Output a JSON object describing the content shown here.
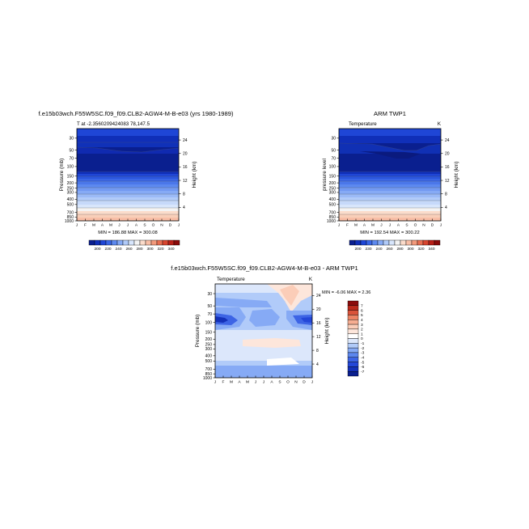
{
  "chart_data": [
    {
      "type": "heatmap",
      "title": "f.e15b03wch.F55W5SC.f09_f09.CLB2-AGW4-M-B-e03 (yrs 1980-1989)",
      "subtitle": "T at -2.3560209424083 78,147.5",
      "ylabel": "Pressure (mb)",
      "ylabel_right": "Height (km)",
      "x_ticks": [
        "J",
        "F",
        "M",
        "A",
        "M",
        "J",
        "J",
        "A",
        "S",
        "O",
        "N",
        "D",
        "J"
      ],
      "y_ticks": [
        "30",
        "50",
        "70",
        "100",
        "150",
        "200",
        "250",
        "300",
        "400",
        "500",
        "700",
        "850",
        "1000"
      ],
      "y_ticks_right": [
        "24",
        "20",
        "16",
        "12",
        "8",
        "4"
      ],
      "ylim": [
        1000,
        20
      ],
      "stats": "MIN = 186.88  MAX = 300.08",
      "colorbar_ticks": [
        "200",
        "230",
        "240",
        "260",
        "280",
        "300",
        "320",
        "340"
      ],
      "profile": [
        {
          "p": 20,
          "t": 218
        },
        {
          "p": 30,
          "t": 214
        },
        {
          "p": 50,
          "t": 208
        },
        {
          "p": 70,
          "t": 199
        },
        {
          "p": 100,
          "t": 193
        },
        {
          "p": 150,
          "t": 203
        },
        {
          "p": 200,
          "t": 216
        },
        {
          "p": 250,
          "t": 228
        },
        {
          "p": 300,
          "t": 240
        },
        {
          "p": 400,
          "t": 258
        },
        {
          "p": 500,
          "t": 268
        },
        {
          "p": 700,
          "t": 282
        },
        {
          "p": 850,
          "t": 292
        },
        {
          "p": 1000,
          "t": 300
        }
      ]
    },
    {
      "type": "heatmap",
      "title": "ARM TWP1",
      "left_label": "Temperature",
      "right_label": "K",
      "ylabel": "pressure level",
      "ylabel_right": "Height (km)",
      "x_ticks": [
        "J",
        "F",
        "M",
        "A",
        "M",
        "J",
        "J",
        "A",
        "S",
        "O",
        "N",
        "D",
        "J"
      ],
      "y_ticks": [
        "30",
        "50",
        "70",
        "100",
        "150",
        "200",
        "250",
        "300",
        "400",
        "500",
        "700",
        "850",
        "1000"
      ],
      "y_ticks_right": [
        "24",
        "20",
        "16",
        "12",
        "8",
        "4"
      ],
      "ylim": [
        1000,
        20
      ],
      "stats": "MIN = 192.54  MAX = 300.22",
      "colorbar_ticks": [
        "200",
        "230",
        "240",
        "260",
        "280",
        "300",
        "320",
        "340"
      ]
    },
    {
      "type": "heatmap",
      "title": "f.e15b03wch.F55W5SC.f09_f09.CLB2-AGW4-M-B-e03 - ARM TWP1",
      "left_label": "Temperature",
      "right_label": "K",
      "ylabel": "Pressure (mb)",
      "ylabel_right": "Height (km)",
      "x_ticks": [
        "J",
        "F",
        "M",
        "A",
        "M",
        "J",
        "J",
        "A",
        "S",
        "O",
        "N",
        "D",
        "J"
      ],
      "y_ticks": [
        "30",
        "50",
        "70",
        "100",
        "150",
        "200",
        "250",
        "300",
        "400",
        "500",
        "700",
        "850",
        "1000"
      ],
      "y_ticks_right": [
        "24",
        "20",
        "16",
        "12",
        "8",
        "4"
      ],
      "ylim": [
        1000,
        20
      ],
      "stats": "MIN =  -6.06  MAX =   2.36",
      "colorbar_ticks": [
        "7",
        "6",
        "5",
        "4",
        "3",
        "2",
        "1",
        "0",
        "-1",
        "-2",
        "-3",
        "-4",
        "-5",
        "-6",
        "-7"
      ]
    }
  ],
  "colors": {
    "temperature_scale": [
      "#0a1f8f",
      "#102fb8",
      "#1f46d6",
      "#3a66e6",
      "#5d89ef",
      "#86aaf5",
      "#b1cbf9",
      "#d8e6fc",
      "#f4f4f4",
      "#fbdccb",
      "#f8bea6",
      "#f29a7c",
      "#e86f52",
      "#d8452f",
      "#b82018",
      "#8a0a0a"
    ],
    "difference_scale": [
      "#0a1f8f",
      "#1431b9",
      "#2447d8",
      "#3d64e5",
      "#5d87ee",
      "#86aaf5",
      "#b1cbf9",
      "#dce7fb",
      "#ffffff",
      "#fde6db",
      "#fbcdb8",
      "#f6ad91",
      "#ec8465",
      "#d9533a",
      "#bb2a1c",
      "#8b0c0c"
    ]
  }
}
